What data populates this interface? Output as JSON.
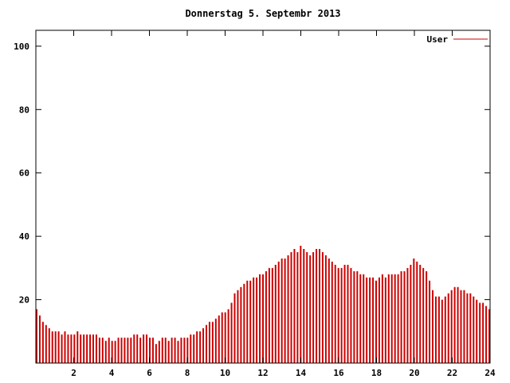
{
  "chart_data": {
    "type": "bar",
    "title": "Donnerstag 5. Septembr 2013",
    "legend_label": "User",
    "series": [
      {
        "name": "User",
        "color": "#cc0000",
        "values": [
          17,
          15,
          13,
          12,
          11,
          10,
          10,
          10,
          9,
          10,
          9,
          9,
          9,
          10,
          9,
          9,
          9,
          9,
          9,
          9,
          8,
          8,
          7,
          8,
          7,
          7,
          8,
          8,
          8,
          8,
          8,
          9,
          9,
          8,
          9,
          9,
          8,
          8,
          6,
          7,
          8,
          8,
          7,
          8,
          8,
          7,
          8,
          8,
          8,
          9,
          9,
          10,
          10,
          11,
          12,
          13,
          13,
          14,
          15,
          16,
          16,
          17,
          19,
          22,
          23,
          24,
          25,
          26,
          26,
          27,
          27,
          28,
          28,
          29,
          30,
          30,
          31,
          32,
          33,
          33,
          34,
          35,
          36,
          35,
          37,
          36,
          35,
          34,
          35,
          36,
          36,
          35,
          34,
          33,
          32,
          31,
          30,
          30,
          31,
          31,
          30,
          29,
          29,
          28,
          28,
          27,
          27,
          27,
          26,
          27,
          28,
          27,
          28,
          28,
          28,
          28,
          29,
          29,
          30,
          31,
          33,
          32,
          31,
          30,
          29,
          26,
          23,
          21,
          21,
          20,
          21,
          22,
          23,
          24,
          24,
          23,
          23,
          22,
          22,
          21,
          20,
          19,
          19,
          18,
          17
        ]
      }
    ],
    "x_start_hour": 0,
    "x_end_hour": 24,
    "sample_interval_minutes": 10,
    "xticks": [
      2,
      4,
      6,
      8,
      10,
      12,
      14,
      16,
      18,
      20,
      22,
      24
    ],
    "yticks": [
      20,
      40,
      60,
      80,
      100
    ],
    "xlim": [
      0,
      24
    ],
    "ylim": [
      0,
      105
    ],
    "grid": false,
    "legend_position": "top-right",
    "xlabel": "",
    "ylabel": ""
  },
  "colors": {
    "bar": "#cc0000",
    "axis": "#000000",
    "background": "#ffffff"
  }
}
